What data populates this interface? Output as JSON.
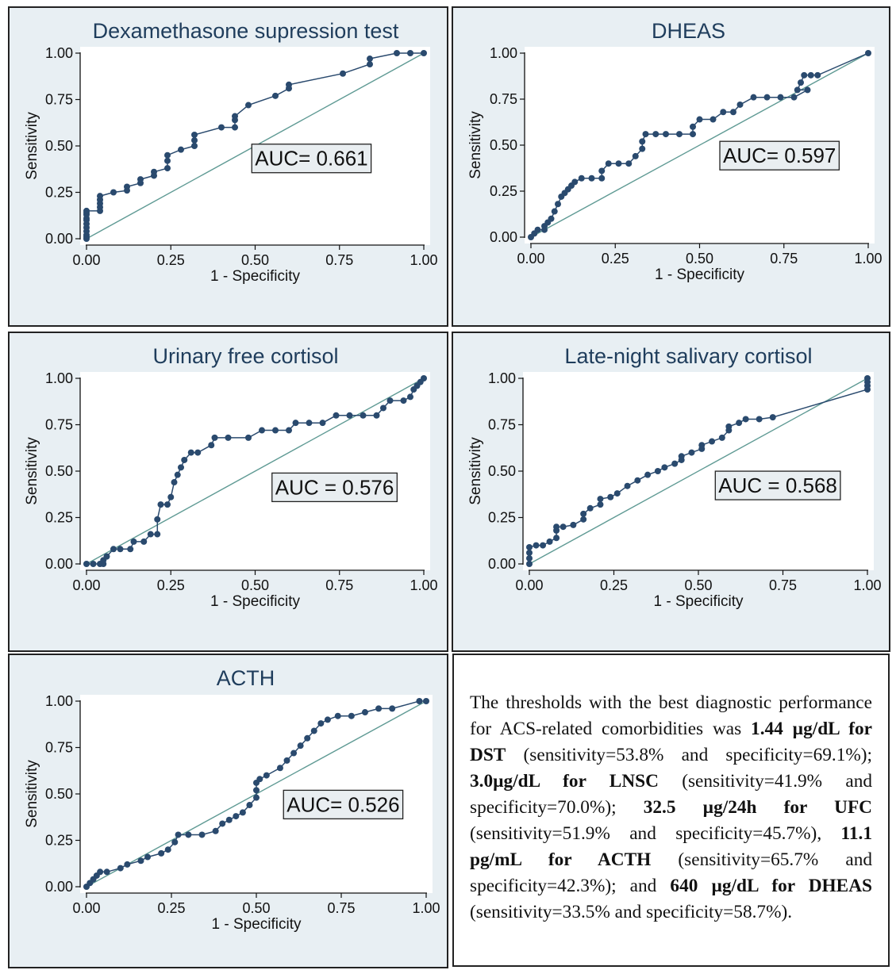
{
  "chart_data": [
    {
      "type": "line",
      "title": "Dexamethasone supression test",
      "xlabel": "1 - Specificity",
      "ylabel": "Sensitivity",
      "xlim": [
        0,
        1
      ],
      "ylim": [
        0,
        1
      ],
      "xticks": [
        "0.00",
        "0.25",
        "0.50",
        "0.75",
        "1.00"
      ],
      "yticks": [
        "0.00",
        "0.25",
        "0.50",
        "0.75",
        "1.00"
      ],
      "annotation": "AUC= 0.661",
      "series": [
        {
          "x": [
            0,
            0,
            0,
            0,
            0,
            0,
            0,
            0,
            0,
            0,
            0,
            0.04,
            0.04,
            0.04,
            0.04,
            0.04,
            0.08,
            0.12,
            0.12,
            0.16,
            0.16,
            0.2,
            0.2,
            0.24,
            0.24,
            0.24,
            0.28,
            0.32,
            0.32,
            0.32,
            0.4,
            0.44,
            0.44,
            0.44,
            0.48,
            0.56,
            0.6,
            0.6,
            0.76,
            0.84,
            0.84,
            0.92,
            0.96,
            1.0
          ],
          "y": [
            0,
            0.01,
            0.02,
            0.04,
            0.06,
            0.08,
            0.1,
            0.11,
            0.13,
            0.14,
            0.15,
            0.15,
            0.17,
            0.19,
            0.21,
            0.23,
            0.25,
            0.26,
            0.28,
            0.3,
            0.32,
            0.34,
            0.36,
            0.38,
            0.42,
            0.45,
            0.48,
            0.5,
            0.53,
            0.56,
            0.6,
            0.6,
            0.64,
            0.66,
            0.72,
            0.77,
            0.81,
            0.83,
            0.89,
            0.94,
            0.97,
            1.0,
            1.0,
            1.0
          ]
        }
      ]
    },
    {
      "type": "line",
      "title": "DHEAS",
      "xlabel": "1 - Specificity",
      "ylabel": "Sensitivity",
      "xlim": [
        0,
        1
      ],
      "ylim": [
        0,
        1
      ],
      "xticks": [
        "0.00",
        "0.25",
        "0.50",
        "0.75",
        "1.00"
      ],
      "yticks": [
        "0.00",
        "0.25",
        "0.50",
        "0.75",
        "1.00"
      ],
      "annotation": "AUC= 0.597",
      "series": [
        {
          "x": [
            0,
            0.01,
            0.02,
            0.04,
            0.04,
            0.05,
            0.06,
            0.07,
            0.08,
            0.09,
            0.1,
            0.11,
            0.12,
            0.13,
            0.15,
            0.18,
            0.21,
            0.21,
            0.23,
            0.26,
            0.29,
            0.31,
            0.33,
            0.33,
            0.34,
            0.37,
            0.4,
            0.44,
            0.48,
            0.48,
            0.5,
            0.54,
            0.57,
            0.6,
            0.62,
            0.66,
            0.7,
            0.74,
            0.78,
            0.82,
            0.79,
            0.8,
            0.81,
            0.83,
            0.85,
            1.0
          ],
          "y": [
            0,
            0.02,
            0.04,
            0.04,
            0.06,
            0.08,
            0.1,
            0.14,
            0.18,
            0.22,
            0.24,
            0.26,
            0.28,
            0.3,
            0.32,
            0.32,
            0.32,
            0.36,
            0.4,
            0.4,
            0.4,
            0.44,
            0.48,
            0.52,
            0.56,
            0.56,
            0.56,
            0.56,
            0.56,
            0.6,
            0.64,
            0.64,
            0.68,
            0.68,
            0.72,
            0.76,
            0.76,
            0.76,
            0.76,
            0.8,
            0.8,
            0.84,
            0.88,
            0.88,
            0.88,
            1.0
          ]
        }
      ]
    },
    {
      "type": "line",
      "title": "Urinary free cortisol",
      "xlabel": "1 - Specificity",
      "ylabel": "Sensitivity",
      "xlim": [
        0,
        1
      ],
      "ylim": [
        0,
        1
      ],
      "xticks": [
        "0.00",
        "0.25",
        "0.50",
        "0.75",
        "1.00"
      ],
      "yticks": [
        "0.00",
        "0.25",
        "0.50",
        "0.75",
        "1.00"
      ],
      "annotation": "AUC = 0.576",
      "series": [
        {
          "x": [
            0,
            0.02,
            0.04,
            0.05,
            0.05,
            0.06,
            0.08,
            0.1,
            0.13,
            0.14,
            0.17,
            0.19,
            0.21,
            0.21,
            0.22,
            0.24,
            0.25,
            0.26,
            0.27,
            0.28,
            0.29,
            0.31,
            0.33,
            0.37,
            0.38,
            0.42,
            0.48,
            0.52,
            0.56,
            0.6,
            0.62,
            0.66,
            0.7,
            0.74,
            0.78,
            0.82,
            0.86,
            0.88,
            0.9,
            0.94,
            0.96,
            0.97,
            0.98,
            0.99,
            1.0
          ],
          "y": [
            0,
            0,
            0,
            0,
            0.02,
            0.04,
            0.08,
            0.08,
            0.08,
            0.12,
            0.12,
            0.16,
            0.16,
            0.24,
            0.32,
            0.32,
            0.36,
            0.44,
            0.48,
            0.52,
            0.56,
            0.6,
            0.6,
            0.64,
            0.68,
            0.68,
            0.68,
            0.72,
            0.72,
            0.72,
            0.76,
            0.76,
            0.76,
            0.8,
            0.8,
            0.8,
            0.8,
            0.84,
            0.88,
            0.88,
            0.9,
            0.94,
            0.96,
            0.98,
            1.0
          ]
        }
      ]
    },
    {
      "type": "line",
      "title": "Late-night salivary cortisol",
      "xlabel": "1 - Specificity",
      "ylabel": "Sensitivity",
      "xlim": [
        0,
        1
      ],
      "ylim": [
        0,
        1
      ],
      "xticks": [
        "0.00",
        "0.25",
        "0.50",
        "0.75",
        "1.00"
      ],
      "yticks": [
        "0.00",
        "0.25",
        "0.50",
        "0.75",
        "1.00"
      ],
      "annotation": "AUC = 0.568",
      "series": [
        {
          "x": [
            0,
            0,
            0,
            0,
            0.02,
            0.04,
            0.06,
            0.08,
            0.08,
            0.08,
            0.1,
            0.13,
            0.16,
            0.16,
            0.18,
            0.21,
            0.21,
            0.24,
            0.26,
            0.29,
            0.32,
            0.35,
            0.38,
            0.4,
            0.43,
            0.45,
            0.45,
            0.48,
            0.51,
            0.51,
            0.54,
            0.57,
            0.59,
            0.59,
            0.62,
            0.64,
            0.68,
            0.72,
            1.0,
            1.0,
            1.0,
            1.0
          ],
          "y": [
            0,
            0.03,
            0.06,
            0.09,
            0.1,
            0.1,
            0.12,
            0.14,
            0.18,
            0.2,
            0.2,
            0.21,
            0.24,
            0.27,
            0.3,
            0.32,
            0.35,
            0.36,
            0.38,
            0.42,
            0.45,
            0.48,
            0.5,
            0.52,
            0.54,
            0.56,
            0.58,
            0.6,
            0.62,
            0.64,
            0.66,
            0.68,
            0.72,
            0.74,
            0.76,
            0.78,
            0.78,
            0.79,
            0.94,
            0.96,
            0.98,
            1.0
          ]
        }
      ]
    },
    {
      "type": "line",
      "title": "ACTH",
      "xlabel": "1 - Specificity",
      "ylabel": "Sensitivity",
      "xlim": [
        0,
        1
      ],
      "ylim": [
        0,
        1
      ],
      "xticks": [
        "0.00",
        "0.25",
        "0.50",
        "0.75",
        "1.00"
      ],
      "yticks": [
        "0.00",
        "0.25",
        "0.50",
        "0.75",
        "1.00"
      ],
      "annotation": "AUC= 0.526",
      "series": [
        {
          "x": [
            0,
            0.01,
            0.02,
            0.03,
            0.04,
            0.06,
            0.1,
            0.12,
            0.16,
            0.18,
            0.22,
            0.24,
            0.26,
            0.27,
            0.3,
            0.34,
            0.38,
            0.4,
            0.42,
            0.44,
            0.46,
            0.48,
            0.5,
            0.5,
            0.5,
            0.51,
            0.53,
            0.57,
            0.59,
            0.61,
            0.63,
            0.65,
            0.67,
            0.69,
            0.71,
            0.74,
            0.78,
            0.82,
            0.86,
            0.9,
            0.98,
            1.0
          ],
          "y": [
            0,
            0.02,
            0.04,
            0.06,
            0.08,
            0.08,
            0.1,
            0.12,
            0.14,
            0.16,
            0.18,
            0.2,
            0.24,
            0.28,
            0.28,
            0.28,
            0.3,
            0.34,
            0.36,
            0.38,
            0.4,
            0.44,
            0.48,
            0.52,
            0.56,
            0.58,
            0.6,
            0.64,
            0.68,
            0.72,
            0.76,
            0.8,
            0.84,
            0.88,
            0.9,
            0.92,
            0.92,
            0.94,
            0.96,
            0.96,
            1.0,
            1.0
          ]
        }
      ]
    }
  ],
  "note": {
    "p1": "The thresholds with the best diagnostic performance for ACS-related comorbidities was ",
    "b1": "1.44 µg/dL for DST",
    "p2": " (sensitivity=53.8% and specificity=69.1%); ",
    "b2": "3.0µg/dL for LNSC",
    "p3": " (sensitivity=41.9% and specificity=70.0%); ",
    "b3": "32.5 µg/24h for UFC",
    "p4": " (sensitivity=51.9% and specificity=45.7%), ",
    "b4": "11.1 pg/mL for ACTH",
    "p5": " (sensitivity=65.7% and specificity=42.3%); and ",
    "b5": "640 µg/dL for DHEAS",
    "p6": " (sensitivity=33.5% and specificity=58.7%)."
  },
  "colors": {
    "curve": "#2a4a6e",
    "reference": "#5f9a94",
    "panel_bg": "#e8eff3",
    "title": "#1f3d5c"
  }
}
